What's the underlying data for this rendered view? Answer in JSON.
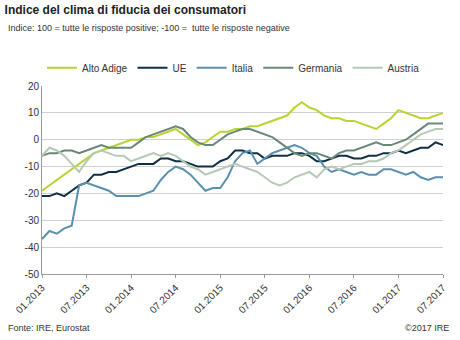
{
  "chart_data": {
    "type": "line",
    "title": "Indice del clima di fiducia dei consumatori",
    "subtitle": "Indice: 100 = tutte le risposte positive; -100 =  tutte le risposte negative",
    "annotations": [
      "Fonte: IRE, Eurostat",
      "©2017 IRE"
    ],
    "categories": [
      "01.2013",
      null,
      null,
      null,
      null,
      null,
      "07.2013",
      null,
      null,
      null,
      null,
      null,
      "01.2014",
      null,
      null,
      null,
      null,
      null,
      "07.2014",
      null,
      null,
      null,
      null,
      null,
      "01.2015",
      null,
      null,
      null,
      null,
      null,
      "07.2015",
      null,
      null,
      null,
      null,
      null,
      "01.2016",
      null,
      null,
      null,
      null,
      null,
      "07.2016",
      null,
      null,
      null,
      null,
      null,
      "01.2017",
      null,
      null,
      null,
      null,
      null,
      "07.2017"
    ],
    "series": [
      {
        "name": "Alto Adige",
        "color": "#b8d433",
        "values": [
          -19,
          -17,
          -15,
          -13,
          -11,
          -9,
          -7,
          -5,
          -4,
          -3,
          -2,
          -1,
          0,
          0,
          1,
          1,
          2,
          3,
          4,
          2,
          0,
          -2,
          -1,
          1,
          3,
          3,
          4,
          4,
          5,
          5,
          6,
          7,
          8,
          9,
          12,
          14,
          12,
          11,
          9,
          8,
          8,
          7,
          7,
          6,
          5,
          4,
          6,
          8,
          11,
          10,
          9,
          8,
          8,
          9,
          10
        ]
      },
      {
        "name": "UE",
        "color": "#0f2f44",
        "values": [
          -21,
          -21,
          -20,
          -21,
          -19,
          -17,
          -16,
          -13,
          -13,
          -12,
          -12,
          -11,
          -10,
          -9,
          -9,
          -9,
          -7,
          -7,
          -8,
          -8,
          -9,
          -10,
          -10,
          -10,
          -8,
          -7,
          -4,
          -4,
          -5,
          -5,
          -7,
          -6,
          -6,
          -6,
          -5,
          -5,
          -6,
          -8,
          -8,
          -7,
          -6,
          -6,
          -7,
          -7,
          -6,
          -6,
          -5,
          -5,
          -4,
          -5,
          -4,
          -3,
          -3,
          -1,
          -2
        ]
      },
      {
        "name": "Italia",
        "color": "#5b8fae",
        "values": [
          -37,
          -34,
          -35,
          -33,
          -32,
          -17,
          -16,
          -17,
          -18,
          -19,
          -21,
          -21,
          -21,
          -21,
          -20,
          -19,
          -15,
          -12,
          -10,
          -11,
          -13,
          -16,
          -19,
          -18,
          -18,
          -14,
          -8,
          -5,
          -4,
          -9,
          -7,
          -5,
          -4,
          -3,
          -2,
          -3,
          -5,
          -6,
          -10,
          -12,
          -11,
          -12,
          -13,
          -12,
          -13,
          -13,
          -11,
          -11,
          -12,
          -13,
          -12,
          -14,
          -15,
          -14,
          -14
        ]
      },
      {
        "name": "Germania",
        "color": "#6a8878",
        "values": [
          -6,
          -5,
          -5,
          -4,
          -4,
          -5,
          -4,
          -3,
          -2,
          -3,
          -3,
          -3,
          -3,
          -1,
          1,
          2,
          3,
          4,
          5,
          4,
          1,
          -1,
          -2,
          -2,
          0,
          2,
          3,
          4,
          4,
          3,
          2,
          1,
          -1,
          -3,
          -5,
          -6,
          -5,
          -5,
          -6,
          -7,
          -5,
          -4,
          -4,
          -3,
          -2,
          -1,
          -2,
          -2,
          -1,
          0,
          2,
          4,
          6,
          6,
          6
        ]
      },
      {
        "name": "Austria",
        "color": "#b6c9b6",
        "values": [
          -6,
          -3,
          -4,
          -6,
          -9,
          -12,
          -8,
          -5,
          -4,
          -5,
          -6,
          -6,
          -8,
          -7,
          -6,
          -5,
          -6,
          -5,
          -6,
          -8,
          -10,
          -11,
          -13,
          -12,
          -11,
          -10,
          -9,
          -10,
          -11,
          -12,
          -14,
          -16,
          -17,
          -16,
          -14,
          -13,
          -12,
          -14,
          -11,
          -10,
          -11,
          -10,
          -9,
          -9,
          -8,
          -8,
          -7,
          -5,
          -4,
          -2,
          0,
          2,
          3,
          4,
          4
        ]
      }
    ],
    "ylim": [
      -50,
      20
    ],
    "yticks": [
      -50,
      -40,
      -30,
      -20,
      -10,
      0,
      10,
      20
    ],
    "grid": true,
    "legend": "top"
  }
}
